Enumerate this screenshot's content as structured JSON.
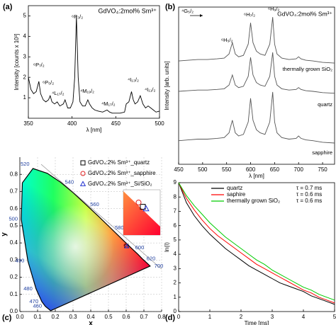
{
  "chart_data": [
    {
      "type": "line",
      "panel": "(a)",
      "title": "GdVO₄:2mol% Sm³⁺",
      "x_label": "λ [nm]",
      "y_label": "Intensity [counts x 10³]",
      "x": [
        350,
        353,
        356,
        359,
        362,
        364,
        367,
        370,
        373,
        375,
        377,
        380,
        383,
        386,
        390,
        392,
        395,
        398,
        401,
        403,
        405,
        407,
        409,
        412,
        415,
        418,
        420,
        423,
        426,
        430,
        435,
        440,
        443,
        446,
        450,
        455,
        460,
        462,
        465,
        468,
        470,
        472,
        475,
        478,
        481,
        484,
        487,
        490,
        493,
        496,
        500
      ],
      "series": [
        {
          "color": "#000000",
          "values": [
            2.0,
            1.4,
            1.2,
            1.3,
            1.8,
            1.2,
            0.9,
            0.8,
            0.9,
            1.1,
            0.8,
            0.7,
            0.8,
            0.6,
            0.7,
            0.9,
            0.5,
            0.5,
            0.8,
            2.0,
            5.0,
            2.0,
            0.8,
            0.6,
            0.6,
            0.9,
            0.7,
            0.5,
            0.4,
            0.35,
            0.3,
            0.4,
            0.3,
            0.25,
            0.25,
            0.25,
            0.3,
            0.7,
            0.8,
            1.3,
            0.9,
            0.7,
            0.8,
            1.1,
            0.7,
            0.5,
            0.6,
            0.5,
            0.4,
            0.3,
            0.35
          ]
        }
      ],
      "annotations": [
        "⁶P₇/₂",
        "⁶P₅/₂",
        "⁴L₁₇/₂",
        "⁶P₃/₂",
        "⁴M₁₉/₂",
        "⁴M₁₇/₂",
        "⁴I₁₃/₂",
        "⁴I₁₁/₂"
      ],
      "xlim": [
        350,
        500
      ],
      "xticks": [
        350,
        400,
        450,
        500
      ],
      "ylim": [
        0,
        5.5
      ],
      "yticks": [
        1,
        2,
        3,
        4,
        5
      ]
    },
    {
      "type": "line",
      "panel": "(b)",
      "title": "GdVO₄:2mol% Sm³⁺",
      "x_label": "λ [nm]",
      "y_label": "Intensity [arb. units]",
      "x": [
        450,
        470,
        490,
        510,
        530,
        545,
        555,
        562,
        568,
        575,
        585,
        595,
        600,
        605,
        612,
        620,
        630,
        640,
        646,
        650,
        655,
        665,
        680,
        695,
        700,
        705,
        715,
        730,
        750,
        775
      ],
      "series": [
        {
          "name": "thermally grown SiO₂",
          "color": "#555555",
          "values": [
            6.57,
            6.615,
            6.66,
            6.66,
            6.705,
            6.75,
            7.02,
            7.74,
            7.02,
            6.84,
            6.93,
            7.65,
            9.0,
            7.74,
            7.2,
            7.02,
            6.93,
            7.65,
            9.36,
            7.65,
            7.02,
            6.75,
            6.66,
            6.705,
            6.84,
            6.705,
            6.615,
            6.57,
            6.48,
            6.435
          ]
        },
        {
          "name": "quartz",
          "color": "#555555",
          "values": [
            4.64,
            4.68,
            4.72,
            4.72,
            4.76,
            4.8,
            5.04,
            5.68,
            5.04,
            4.88,
            4.96,
            5.6,
            6.8,
            5.68,
            5.2,
            5.04,
            4.96,
            5.6,
            7.12,
            5.6,
            5.04,
            4.8,
            4.72,
            4.76,
            4.88,
            4.76,
            4.68,
            4.64,
            4.56,
            4.52
          ]
        },
        {
          "name": "sapphire",
          "color": "#555555",
          "values": [
            1.5,
            1.55,
            1.6,
            1.6,
            1.65,
            1.7,
            2.0,
            2.8,
            2.0,
            1.8,
            1.9,
            2.7,
            4.2,
            2.8,
            2.2,
            2.0,
            1.9,
            2.7,
            4.6,
            2.7,
            2.0,
            1.7,
            1.6,
            1.65,
            1.8,
            1.65,
            1.55,
            1.5,
            1.4,
            1.35
          ]
        }
      ],
      "annotations": [
        "⁴G₅/₂",
        "⁶H₅/₂",
        "⁶H₇/₂",
        "⁶H₉/₂"
      ],
      "xlim": [
        450,
        775
      ],
      "xticks": [
        450,
        500,
        550,
        600,
        650,
        700,
        750
      ],
      "ylim": [
        0,
        10
      ]
    },
    {
      "type": "scatter",
      "panel": "(c)",
      "x_label": "x",
      "y_label": "y",
      "grid": true,
      "locus": {
        "wavelengths": [
          null,
          460,
          470,
          480,
          490,
          500,
          null,
          520,
          null,
          540,
          null,
          560,
          null,
          580,
          null,
          600,
          null,
          620,
          null,
          700
        ],
        "x": [
          0.174,
          0.144,
          0.124,
          0.091,
          0.045,
          0.008,
          0.014,
          0.074,
          0.155,
          0.23,
          0.302,
          0.373,
          0.444,
          0.512,
          0.575,
          0.627,
          0.666,
          0.691,
          0.719,
          0.735
        ],
        "y": [
          0.005,
          0.03,
          0.058,
          0.133,
          0.295,
          0.538,
          0.75,
          0.834,
          0.806,
          0.754,
          0.692,
          0.624,
          0.555,
          0.487,
          0.424,
          0.372,
          0.334,
          0.308,
          0.281,
          0.265
        ]
      },
      "series": [
        {
          "name": "GdVO₄:2% Sm³⁺_quartz",
          "marker": "square",
          "color": "#000000",
          "x": [
            0.601
          ],
          "values": [
            0.382
          ]
        },
        {
          "name": "GdVO₄:2% Sm³⁺_sapphire",
          "marker": "circle",
          "color": "#e02020",
          "x": [
            0.597
          ],
          "values": [
            0.386
          ]
        },
        {
          "name": "GdVO₄:2% Sm³⁺_Si/SiO₂",
          "marker": "triangle",
          "color": "#2030d0",
          "x": [
            0.604
          ],
          "values": [
            0.38
          ]
        }
      ],
      "xlim": [
        0,
        0.8
      ],
      "xticks": [
        {
          "value": 0,
          "label": "0.0"
        },
        0.1,
        0.2,
        0.3,
        0.4,
        0.5,
        0.6,
        0.7,
        0.8
      ],
      "ylim": [
        0,
        0.9
      ],
      "yticks": [
        {
          "value": 0,
          "label": "0.0"
        },
        0.1,
        0.2,
        0.3,
        0.4,
        0.5,
        0.6,
        0.7,
        0.8
      ]
    },
    {
      "type": "line",
      "panel": "(d)",
      "x_label": "Time [ms]",
      "y_label": "ln(I)",
      "x": [
        0,
        0.25,
        0.5,
        0.75,
        1,
        1.25,
        1.5,
        1.75,
        2,
        2.25,
        2.5,
        2.75,
        3,
        3.25,
        3.5,
        3.75,
        4,
        4.25,
        4.5,
        4.75,
        5
      ],
      "series": [
        {
          "name": "quartz",
          "tau_label": "τ = 0.7 ms",
          "color": "#000000",
          "values": [
            9.0,
            7.6,
            6.7,
            6.0,
            5.4,
            4.9,
            4.4,
            4.0,
            3.6,
            3.2,
            2.9,
            2.6,
            2.3,
            2.0,
            1.8,
            1.6,
            1.4,
            1.1,
            0.9,
            0.7,
            0.5
          ]
        },
        {
          "name": "saphire",
          "tau_label": "τ = 0.6 ms",
          "color": "#ff0000",
          "values": [
            9.0,
            7.9,
            7.1,
            6.4,
            5.8,
            5.3,
            4.9,
            4.5,
            4.1,
            3.7,
            3.3,
            3.0,
            2.7,
            2.4,
            2.1,
            1.8,
            1.5,
            1.3,
            1.0,
            0.8,
            0.6
          ]
        },
        {
          "name": "thermally grown SiO₂",
          "tau_label": "τ = 0.6 ms",
          "color": "#00cc00",
          "values": [
            9.0,
            8.1,
            7.4,
            6.8,
            6.2,
            5.7,
            5.2,
            4.8,
            4.4,
            4.0,
            3.6,
            3.3,
            2.9,
            2.6,
            2.3,
            2.0,
            1.7,
            1.5,
            1.2,
            1.0,
            0.8
          ]
        }
      ],
      "xlim": [
        0,
        5
      ],
      "xticks": [
        0,
        1,
        2,
        3,
        4,
        5
      ],
      "ylim": [
        0,
        9
      ],
      "yticks": [
        0,
        1,
        2,
        3,
        4,
        5,
        6,
        7,
        8,
        9
      ]
    }
  ]
}
